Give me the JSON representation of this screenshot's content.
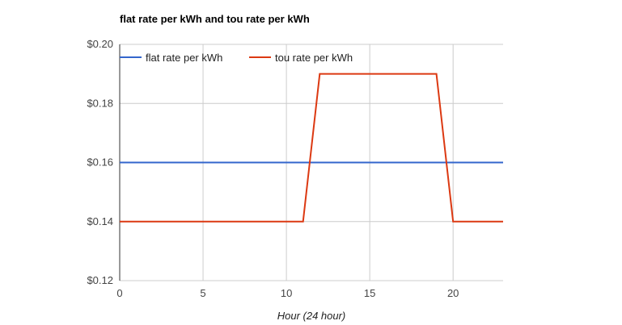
{
  "chart_data": {
    "type": "line",
    "title": "flat rate per kWh and tou rate per kWh",
    "xlabel": "Hour (24 hour)",
    "ylabel": "",
    "xlim": [
      0,
      23
    ],
    "ylim": [
      0.12,
      0.2
    ],
    "xticks": [
      0,
      5,
      10,
      15,
      20
    ],
    "yticks": [
      0.12,
      0.14,
      0.16,
      0.18,
      0.2
    ],
    "ytick_labels": [
      "$0.12",
      "$0.14",
      "$0.16",
      "$0.18",
      "$0.20"
    ],
    "grid": true,
    "legend_position": "top-left",
    "x": [
      0,
      1,
      2,
      3,
      4,
      5,
      6,
      7,
      8,
      9,
      10,
      11,
      12,
      13,
      14,
      15,
      16,
      17,
      18,
      19,
      20,
      21,
      22,
      23
    ],
    "series": [
      {
        "name": "flat rate per kWh",
        "color": "#3366cc",
        "values": [
          0.16,
          0.16,
          0.16,
          0.16,
          0.16,
          0.16,
          0.16,
          0.16,
          0.16,
          0.16,
          0.16,
          0.16,
          0.16,
          0.16,
          0.16,
          0.16,
          0.16,
          0.16,
          0.16,
          0.16,
          0.16,
          0.16,
          0.16,
          0.16
        ]
      },
      {
        "name": "tou rate per kWh",
        "color": "#dc3912",
        "values": [
          0.14,
          0.14,
          0.14,
          0.14,
          0.14,
          0.14,
          0.14,
          0.14,
          0.14,
          0.14,
          0.14,
          0.14,
          0.19,
          0.19,
          0.19,
          0.19,
          0.19,
          0.19,
          0.19,
          0.19,
          0.14,
          0.14,
          0.14,
          0.14
        ]
      }
    ]
  }
}
